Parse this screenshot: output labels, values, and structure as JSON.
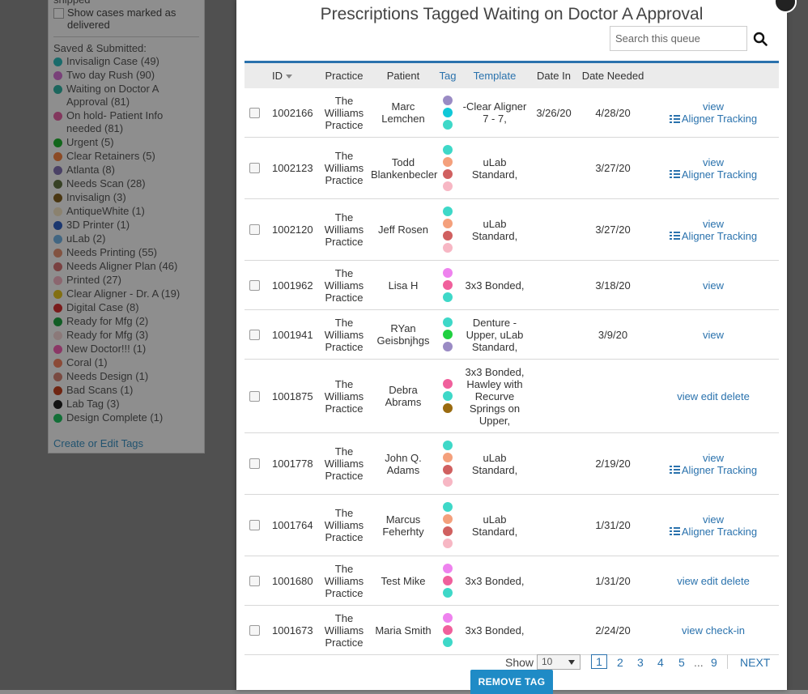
{
  "sidebar": {
    "shipped_fragment": "shipped",
    "delivered_label": "Show cases marked as delivered",
    "saved_title": "Saved & Submitted:",
    "tags": [
      {
        "label": "Invisalign Case (49)",
        "color": "#2eb8b8"
      },
      {
        "label": "Two day Rush (90)",
        "color": "#d070d0"
      },
      {
        "label": "Waiting on Doctor A Approval (81)",
        "color": "#30b0a0"
      },
      {
        "label": "On hold- Patient Info needed (81)",
        "color": "#e060a0"
      },
      {
        "label": "Urgent (5)",
        "color": "#20b030"
      },
      {
        "label": "Clear Retainers (5)",
        "color": "#f08040"
      },
      {
        "label": "Atlanta (8)",
        "color": "#8070b0"
      },
      {
        "label": "Needs Scan (28)",
        "color": "#607040"
      },
      {
        "label": "Invisalign (3)",
        "color": "#806020"
      },
      {
        "label": "AntiqueWhite (1)",
        "color": "#f0e0c0"
      },
      {
        "label": "3D Printer (1)",
        "color": "#3060c0"
      },
      {
        "label": "uLab (2)",
        "color": "#70b0e0"
      },
      {
        "label": "Needs Printing (55)",
        "color": "#e09070"
      },
      {
        "label": "Needs Aligner Plan (46)",
        "color": "#d07070"
      },
      {
        "label": "Printed (27)",
        "color": "#f0b0c0"
      },
      {
        "label": "Clear Aligner - Dr. A (19)",
        "color": "#e0c020"
      },
      {
        "label": "Digital Case (8)",
        "color": "#d03030"
      },
      {
        "label": "Ready for Mfg (2)",
        "color": "#20a040"
      },
      {
        "label": "Ready for Mfg (3)",
        "color": "#f0d0d0"
      },
      {
        "label": "New Doctor!!! (1)",
        "color": "#f060b0"
      },
      {
        "label": "Coral (1)",
        "color": "#f08060"
      },
      {
        "label": "Needs Design (1)",
        "color": "#d08070"
      },
      {
        "label": "Bad Scans (1)",
        "color": "#c04020"
      },
      {
        "label": "Lab Tag (3)",
        "color": "#202020"
      },
      {
        "label": "Design Complete (1)",
        "color": "#20c060"
      }
    ],
    "create_link": "Create or Edit Tags"
  },
  "modal": {
    "title": "Prescriptions Tagged Waiting on Doctor A Approval",
    "search_placeholder": "Search this queue",
    "columns": {
      "id": "ID",
      "practice": "Practice",
      "patient": "Patient",
      "tag": "Tag",
      "template": "Template",
      "date_in": "Date In",
      "date_needed": "Date Needed"
    },
    "rows": [
      {
        "id": "1002166",
        "practice": "The Williams Practice",
        "patient": "Marc Lemchen",
        "tags": [
          "#9a8bc4",
          "#10c8d8",
          "#3ed8c8"
        ],
        "template": "-Clear Aligner 7 - 7,",
        "date_in": "3/26/20",
        "date_needed": "4/28/20",
        "actions": [
          "view",
          "Aligner Tracking"
        ],
        "height": 60
      },
      {
        "id": "1002123",
        "practice": "The Williams Practice",
        "patient": "Todd Blankenbecler",
        "tags": [
          "#3ed8c8",
          "#f4a07c",
          "#d06060",
          "#f7b7c4"
        ],
        "template": "uLab Standard,",
        "date_in": "",
        "date_needed": "3/27/20",
        "actions": [
          "view",
          "Aligner Tracking"
        ],
        "height": 75
      },
      {
        "id": "1002120",
        "practice": "The Williams Practice",
        "patient": "Jeff Rosen",
        "tags": [
          "#3ed8c8",
          "#f4a07c",
          "#d06060",
          "#f7b7c4"
        ],
        "template": "uLab Standard,",
        "date_in": "",
        "date_needed": "3/27/20",
        "actions": [
          "view",
          "Aligner Tracking"
        ],
        "height": 75
      },
      {
        "id": "1001962",
        "practice": "The Williams Practice",
        "patient": "Lisa H",
        "tags": [
          "#ee82ee",
          "#f0609c",
          "#3ed8c8"
        ],
        "template": "3x3 Bonded,",
        "date_in": "",
        "date_needed": "3/18/20",
        "actions": [
          "view"
        ],
        "height": 60
      },
      {
        "id": "1001941",
        "practice": "The Williams Practice",
        "patient": "RYan Geisbnjhgs",
        "tags": [
          "#3ed8c8",
          "#20d040",
          "#9a8bc4"
        ],
        "template": "Denture - Upper, uLab Standard,",
        "date_in": "",
        "date_needed": "3/9/20",
        "actions": [
          "view"
        ],
        "height": 60
      },
      {
        "id": "1001875",
        "practice": "The Williams Practice",
        "patient": "Debra Abrams",
        "tags": [
          "#f0609c",
          "#3ed8c8",
          "#9a6b10"
        ],
        "template": "3x3 Bonded, Hawley with Recurve Springs on Upper,",
        "date_in": "",
        "date_needed": "",
        "actions": [
          "view edit delete"
        ],
        "height": 90
      },
      {
        "id": "1001778",
        "practice": "The Williams Practice",
        "patient": "John Q. Adams",
        "tags": [
          "#3ed8c8",
          "#f4a07c",
          "#d06060",
          "#f7b7c4"
        ],
        "template": "uLab Standard,",
        "date_in": "",
        "date_needed": "2/19/20",
        "actions": [
          "view",
          "Aligner Tracking"
        ],
        "height": 75
      },
      {
        "id": "1001764",
        "practice": "The Williams Practice",
        "patient": "Marcus Feherhty",
        "tags": [
          "#3ed8c8",
          "#f4a07c",
          "#d06060",
          "#f7b7c4"
        ],
        "template": "uLab Standard,",
        "date_in": "",
        "date_needed": "1/31/20",
        "actions": [
          "view",
          "Aligner Tracking"
        ],
        "height": 75
      },
      {
        "id": "1001680",
        "practice": "The Williams Practice",
        "patient": "Test Mike",
        "tags": [
          "#ee82ee",
          "#f0609c",
          "#3ed8c8"
        ],
        "template": "3x3 Bonded,",
        "date_in": "",
        "date_needed": "1/31/20",
        "actions": [
          "view edit delete"
        ],
        "height": 60
      },
      {
        "id": "1001673",
        "practice": "The Williams Practice",
        "patient": "Maria Smith",
        "tags": [
          "#ee82ee",
          "#f0609c",
          "#3ed8c8"
        ],
        "template": "3x3 Bonded,",
        "date_in": "",
        "date_needed": "2/24/20",
        "actions": [
          "view check-in"
        ],
        "height": 60
      }
    ],
    "pagination": {
      "show_label": "Show",
      "page_size": "10",
      "pages": [
        "1",
        "2",
        "3",
        "4",
        "5",
        "...",
        "9"
      ],
      "current": "1",
      "next": "NEXT"
    },
    "remove_button": "REMOVE TAG"
  }
}
